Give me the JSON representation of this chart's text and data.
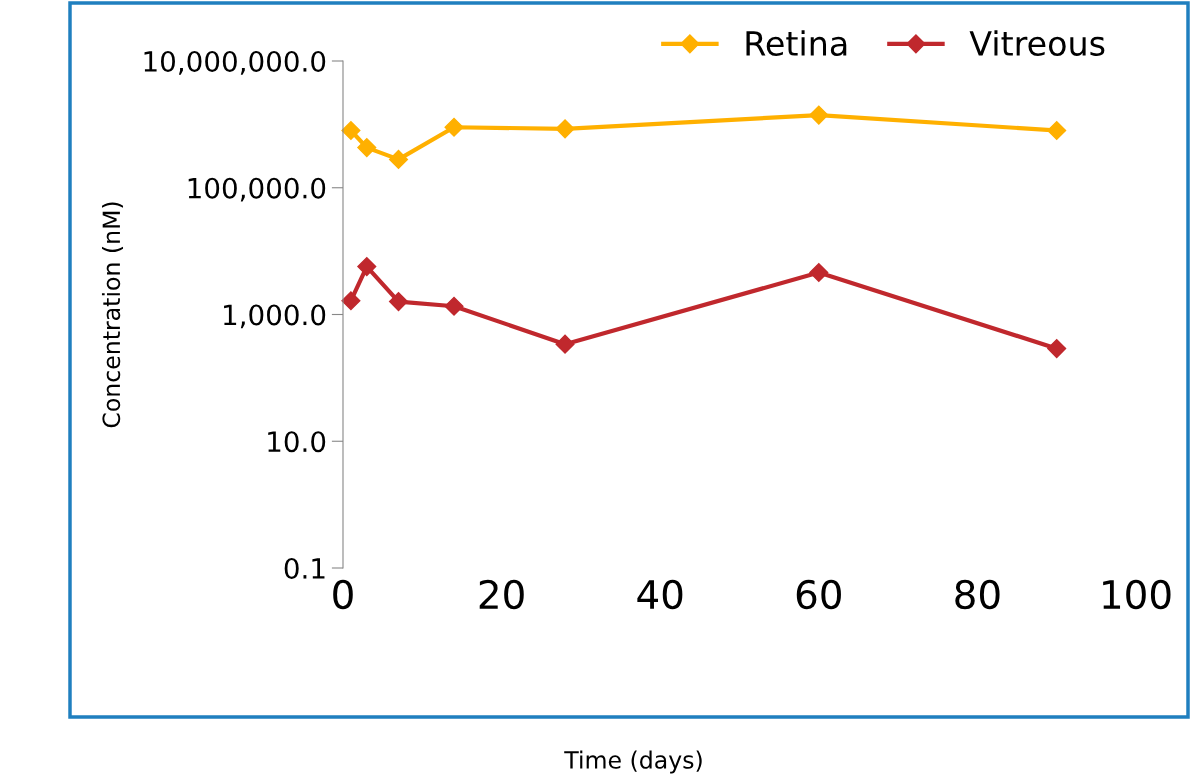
{
  "chart_data": {
    "type": "line",
    "annotations": [
      "Time (days)"
    ],
    "ylabel": "Concentration (nM)",
    "log": "y",
    "xlim": [
      0,
      100
    ],
    "xticks": [
      0,
      20,
      40,
      60,
      80,
      100
    ],
    "ylim": [
      0.1,
      10000000
    ],
    "yticks": [
      {
        "value": 0.1,
        "label": "0.1"
      },
      {
        "value": 10,
        "label": "10.0"
      },
      {
        "value": 1000,
        "label": "1,000.0"
      },
      {
        "value": 100000,
        "label": "100,000.0"
      },
      {
        "value": 10000000,
        "label": "10,000,000.0"
      }
    ],
    "marker": "diamond",
    "line_style": "solid",
    "grid": false,
    "legend": "top right",
    "series": [
      {
        "name": "Retina",
        "color": "#ffb000",
        "x": [
          1,
          3,
          7,
          14,
          28,
          60,
          90
        ],
        "values": [
          800000,
          430000,
          280000,
          900000,
          850000,
          1400000,
          800000
        ]
      },
      {
        "name": "Vitreous",
        "color": "#c0282d",
        "x": [
          1,
          3,
          7,
          14,
          28,
          60,
          90
        ],
        "values": [
          1650,
          5700,
          1600,
          1350,
          340,
          4600,
          290
        ]
      }
    ]
  }
}
